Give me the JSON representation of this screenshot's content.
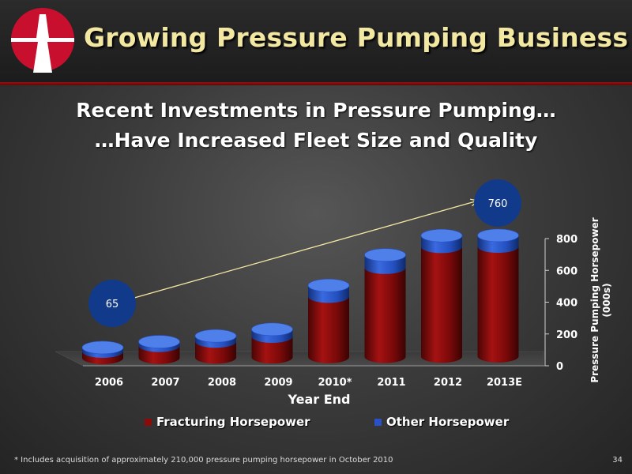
{
  "header": {
    "title": "Growing Pressure Pumping Business"
  },
  "subtitle": {
    "line1": "Recent Investments in Pressure Pumping…",
    "line2": "…Have Increased Fleet Size and Quality"
  },
  "colors": {
    "title": "#f3e8a2",
    "fracturing": "#8b0a0a",
    "other": "#2a52c8",
    "bubble": "#123a8a",
    "arrow": "#f3e8a2",
    "accent_rule": "#9a1010"
  },
  "callouts": {
    "start_label": "65",
    "end_label": "760"
  },
  "chart_data": {
    "type": "bar",
    "stacked": true,
    "style": "3d-cylinder",
    "categories": [
      "2006",
      "2007",
      "2008",
      "2009",
      "2010*",
      "2011",
      "2012",
      "2013E"
    ],
    "series": [
      {
        "name": "Fracturing Horsepower",
        "values": [
          40,
          75,
          100,
          130,
          380,
          560,
          690,
          690
        ]
      },
      {
        "name": "Other Horsepower",
        "values": [
          25,
          25,
          35,
          45,
          70,
          80,
          70,
          70
        ]
      }
    ],
    "xlabel": "Year End",
    "ylabel": "Pressure Pumping Horsepower (000s)",
    "y_ticks": [
      0,
      200,
      400,
      600,
      800
    ],
    "ylim": [
      0,
      800
    ],
    "y_axis_side": "right",
    "legend_position": "bottom",
    "grid": false
  },
  "footnote": "* Includes acquisition of approximately 210,000 pressure pumping horsepower in October 2010",
  "page_number": "34"
}
